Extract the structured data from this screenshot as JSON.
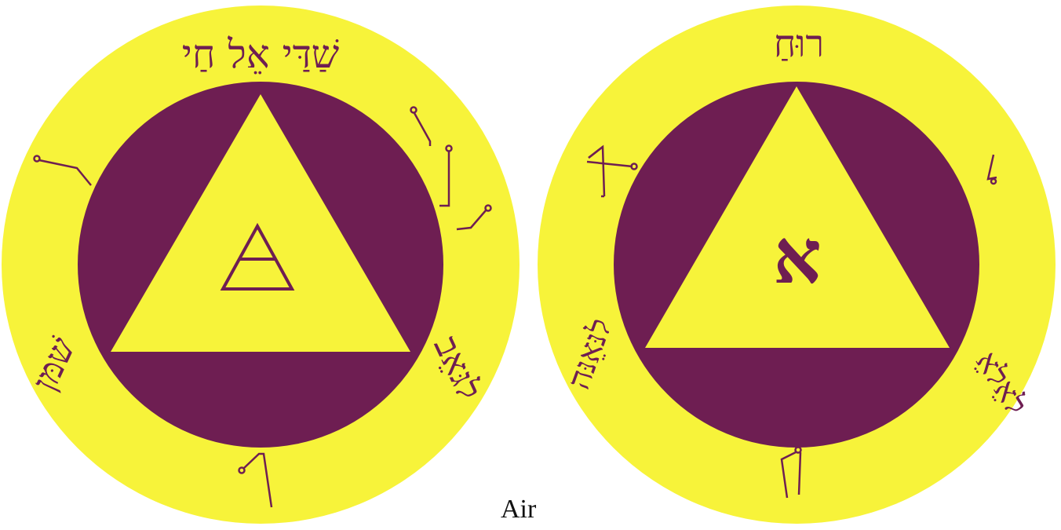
{
  "caption": "Air",
  "colors": {
    "yellow": "#f7f33a",
    "purple": "#6e1e52",
    "page_bg": "#ffffff",
    "caption_text": "#111111"
  },
  "left_talisman": {
    "top_inscription": "שַׁדַּי אֵל חַי",
    "left_inscription": "שׁמּן",
    "right_inscription": "לגּאֵב",
    "center_icon": "air-element-symbol"
  },
  "right_talisman": {
    "top_inscription": "רוּחַ",
    "center_letter": "א",
    "left_inscription": "לנּאֵנּה",
    "right_inscription": "לאֵלאֵ",
    "center_icon": "hebrew-aleph"
  }
}
